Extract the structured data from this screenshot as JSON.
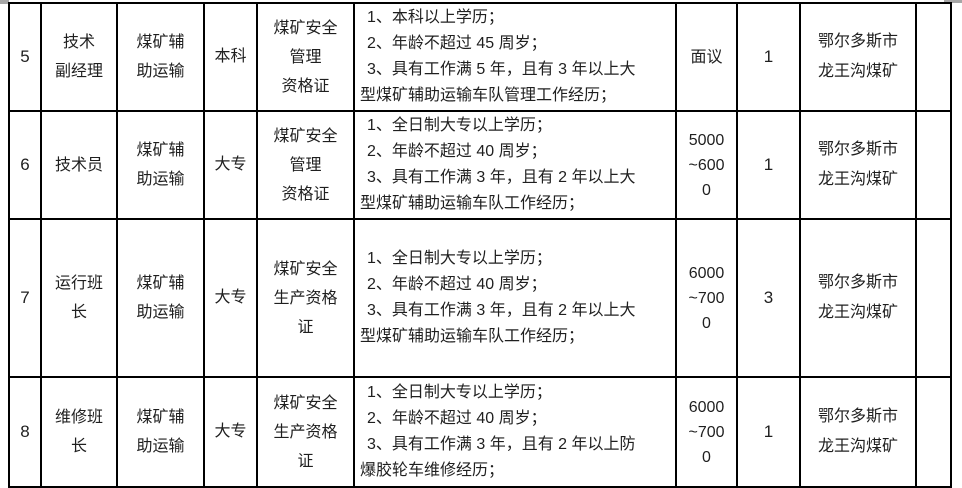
{
  "page": {
    "background_color": "#ffffff",
    "text_color": "#1f1f1f",
    "border_color": "#000000"
  },
  "table": {
    "rows": [
      {
        "no": "5",
        "title": "技术\n副经理",
        "department": "煤矿辅\n助运输",
        "education": "本科",
        "certificate": "煤矿安全\n管理\n资格证",
        "requirements": [
          "1、本科以上学历；",
          "2、年龄不超过 45 周岁；",
          "3、具有工作满 5 年，且有 3 年以上大",
          "型煤矿辅助运输车队管理工作经历；"
        ],
        "salary": "面议",
        "headcount": "1",
        "location": "鄂尔多斯市\n龙王沟煤矿",
        "extra": ""
      },
      {
        "no": "6",
        "title": "技术员",
        "department": "煤矿辅\n助运输",
        "education": "大专",
        "certificate": "煤矿安全\n管理\n资格证",
        "requirements": [
          "1、全日制大专以上学历；",
          "2、年龄不超过 40 周岁；",
          "3、具有工作满 3 年，且有 2 年以上大",
          "型煤矿辅助运输车队工作经历；"
        ],
        "salary": "5000\n~600\n0",
        "headcount": "1",
        "location": "鄂尔多斯市\n龙王沟煤矿",
        "extra": ""
      },
      {
        "no": "7",
        "title": "运行班\n长",
        "department": "煤矿辅\n助运输",
        "education": "大专",
        "certificate": "煤矿安全\n生产资格\n证",
        "requirements": [
          "1、全日制大专以上学历；",
          "2、年龄不超过 40 周岁；",
          "3、具有工作满 3 年，且有 2 年以上大",
          "型煤矿辅助运输车队工作经历；"
        ],
        "salary": "6000\n~700\n0",
        "headcount": "3",
        "location": "鄂尔多斯市\n龙王沟煤矿",
        "extra": ""
      },
      {
        "no": "8",
        "title": "维修班\n长",
        "department": "煤矿辅\n助运输",
        "education": "大专",
        "certificate": "煤矿安全\n生产资格\n证",
        "requirements": [
          "1、全日制大专以上学历；",
          "2、年龄不超过 40 周岁；",
          "3、具有工作满 3 年，且有 2 年以上防",
          "爆胶轮车维修经历；"
        ],
        "salary": "6000\n~700\n0",
        "headcount": "1",
        "location": "鄂尔多斯市\n龙王沟煤矿",
        "extra": ""
      }
    ]
  }
}
